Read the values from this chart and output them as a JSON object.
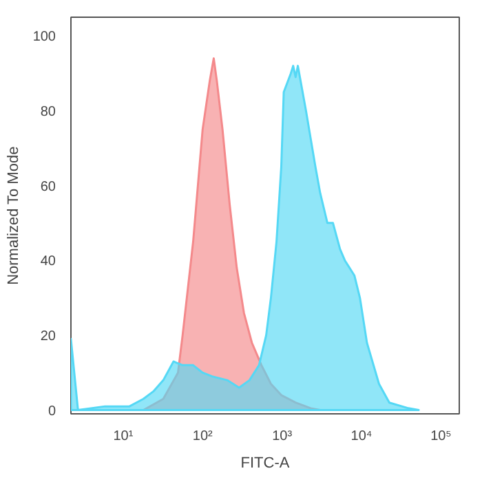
{
  "chart_data": {
    "type": "area",
    "xlabel": "FITC-A",
    "ylabel": "Normalized To Mode",
    "log": "x",
    "grid": false,
    "xlim": [
      2.2,
      170000
    ],
    "ylim": [
      -1,
      105
    ],
    "xticks": [
      {
        "value": 10,
        "label": "10¹"
      },
      {
        "value": 100,
        "label": "10²"
      },
      {
        "value": 1000,
        "label": "10³"
      },
      {
        "value": 10000,
        "label": "10⁴"
      },
      {
        "value": 100000,
        "label": "10⁵"
      }
    ],
    "yticks": [
      0,
      20,
      40,
      60,
      80,
      100
    ],
    "series": [
      {
        "color": "#f4898b",
        "x": [
          18,
          32,
          49,
          56,
          76,
          100,
          123,
          138,
          151,
          178,
          219,
          269,
          331,
          417,
          550,
          724,
          977,
          1480,
          2290,
          3020
        ],
        "values": [
          0,
          3,
          10,
          20,
          45,
          75,
          88,
          94,
          88,
          75,
          55,
          38,
          26,
          18,
          12,
          7,
          4,
          2,
          0.5,
          0
        ]
      },
      {
        "color": "#55d8f5",
        "x": [
          2.2,
          2.7,
          5.9,
          12,
          18,
          24,
          32,
          43,
          56,
          76,
          100,
          132,
          204,
          288,
          389,
          513,
          631,
          724,
          851,
          977,
          1050,
          1290,
          1380,
          1480,
          1580,
          2000,
          2630,
          3020,
          3720,
          4370,
          5370,
          6170,
          8130,
          9550,
          11700,
          16600,
          22400,
          38900,
          52500
        ],
        "values": [
          19,
          0,
          1,
          1,
          3,
          5,
          8,
          13,
          12,
          12,
          10,
          9,
          8,
          6,
          8,
          12,
          20,
          30,
          45,
          65,
          85,
          90,
          92,
          89,
          92,
          80,
          65,
          58,
          50,
          50,
          43,
          40,
          36,
          30,
          18,
          7,
          2,
          0.5,
          0
        ]
      }
    ]
  }
}
